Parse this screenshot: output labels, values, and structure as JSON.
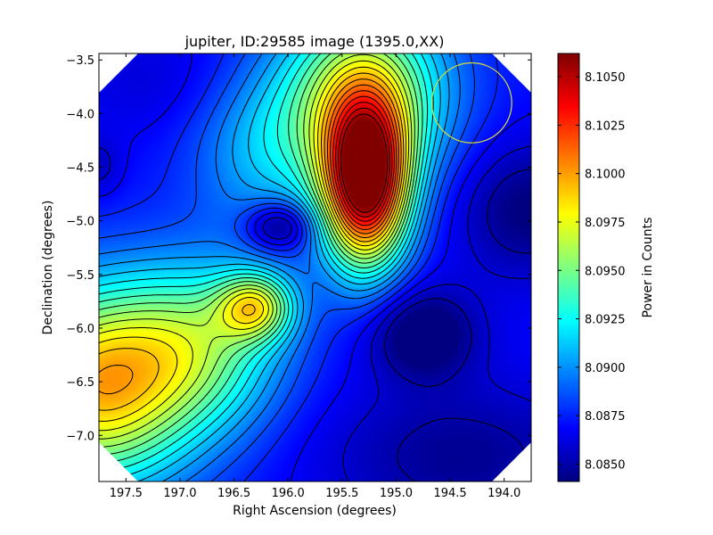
{
  "chart_data": {
    "type": "heatmap",
    "title": "jupiter, ID:29585 image (1395.0,XX)",
    "xlabel": "Right Ascension (degrees)",
    "ylabel": "Declination (degrees)",
    "colorbar_label": "Power in Counts",
    "xlim": [
      197.75,
      193.75
    ],
    "ylim": [
      -7.43,
      -3.44
    ],
    "x_ticks": [
      197.5,
      197.0,
      196.5,
      196.0,
      195.5,
      195.0,
      194.5,
      194.0
    ],
    "x_tick_labels": [
      "197.5",
      "197.0",
      "196.5",
      "196.0",
      "195.5",
      "195.0",
      "194.5",
      "194.0"
    ],
    "y_ticks": [
      -3.5,
      -4.0,
      -4.5,
      -5.0,
      -5.5,
      -6.0,
      -6.5,
      -7.0
    ],
    "y_tick_labels": [
      "−3.5",
      "−4.0",
      "−4.5",
      "−5.0",
      "−5.5",
      "−6.0",
      "−6.5",
      "−7.0"
    ],
    "color_range": [
      8.0841,
      8.1062
    ],
    "colorbar_ticks": [
      8.085,
      8.0875,
      8.09,
      8.0925,
      8.095,
      8.0975,
      8.1,
      8.1025,
      8.105
    ],
    "colorbar_tick_labels": [
      "8.0850",
      "8.0875",
      "8.0900",
      "8.0925",
      "8.0950",
      "8.0975",
      "8.1000",
      "8.1025",
      "8.1050"
    ],
    "colormap": "jet",
    "contour_count": 24,
    "field_components": [
      {
        "feature": "background",
        "value": 8.087
      },
      {
        "feature": "peak",
        "ra": 195.28,
        "dec": -4.65,
        "amplitude": 0.0185,
        "width_ra": 0.28,
        "width_dec": 0.55
      },
      {
        "feature": "ridge",
        "ra": 195.3,
        "dec": -3.8,
        "amplitude": 0.009,
        "width_ra": 0.55,
        "width_dec": 0.6
      },
      {
        "feature": "hot spot",
        "ra": 196.3,
        "dec": -5.8,
        "amplitude": 0.008,
        "width_ra": 0.25,
        "width_dec": 0.22
      },
      {
        "feature": "warm region",
        "ra": 197.8,
        "dec": -6.55,
        "amplitude": 0.012,
        "width_ra": 0.65,
        "width_dec": 0.65
      },
      {
        "feature": "warm region",
        "ra": 196.8,
        "dec": -6.15,
        "amplitude": 0.0065,
        "width_ra": 0.55,
        "width_dec": 0.55
      },
      {
        "feature": "cyan band",
        "ra": 196.2,
        "dec": -4.35,
        "amplitude": 0.0035,
        "width_ra": 0.5,
        "width_dec": 0.55
      },
      {
        "feature": "cool spot",
        "ra": 196.08,
        "dec": -5.05,
        "amplitude": -0.0045,
        "width_ra": 0.22,
        "width_dec": 0.16
      },
      {
        "feature": "cool spot",
        "ra": 194.75,
        "dec": -6.05,
        "amplitude": -0.004,
        "width_ra": 0.35,
        "width_dec": 0.3
      },
      {
        "feature": "cool spot",
        "ra": 193.8,
        "dec": -4.9,
        "amplitude": -0.003,
        "width_ra": 0.45,
        "width_dec": 0.45
      },
      {
        "feature": "cool region",
        "ra": 194.4,
        "dec": -7.2,
        "amplitude": -0.0025,
        "width_ra": 0.9,
        "width_dec": 0.5
      },
      {
        "feature": "cool spot",
        "ra": 197.75,
        "dec": -4.5,
        "amplitude": -0.0015,
        "width_ra": 0.15,
        "width_dec": 0.2
      },
      {
        "feature": "cool region",
        "ra": 197.2,
        "dec": -3.7,
        "amplitude": -0.001,
        "width_ra": 0.6,
        "width_dec": 0.4
      }
    ],
    "circle_marker": {
      "ra": 194.3,
      "dec": -3.9,
      "radius_deg": 0.37,
      "color": "#dcdc3c"
    }
  }
}
